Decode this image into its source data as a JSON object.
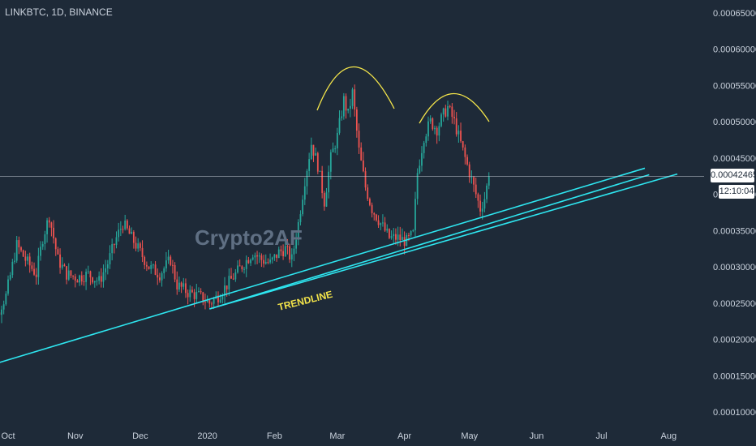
{
  "header": {
    "symbol": "LINKBTC, 1D, BINANCE"
  },
  "watermark": "Crypto2AF",
  "price_badge": "0.00042465",
  "countdown_badge": "12:10:04",
  "colors": {
    "background": "#1e2a38",
    "up": "#26a69a",
    "down": "#ef5350",
    "trendline": "#2ee6f0",
    "arc": "#f5e64a",
    "text": "#c9d1dc"
  },
  "chart_data": {
    "type": "candlestick",
    "title": "",
    "xlabel": "",
    "ylabel": "",
    "ylim": [
      0.0001,
      0.00065
    ],
    "y_ticks": [
      "0.00065000",
      "0.00060000",
      "0.00055000",
      "0.00050000",
      "0.00045000",
      "0.00040000",
      "0.00035000",
      "0.00030000",
      "0.00025000",
      "0.00020000",
      "0.00015000",
      "0.00010000"
    ],
    "y_tick_values": [
      0.00065,
      0.0006,
      0.00055,
      0.0005,
      0.00045,
      0.0004,
      0.00035,
      0.0003,
      0.00025,
      0.0002,
      0.00015,
      0.0001
    ],
    "x_ticks": [
      "Oct",
      "Nov",
      "Dec",
      "2020",
      "Feb",
      "Mar",
      "Apr",
      "May",
      "Jun",
      "Jul",
      "Aug"
    ],
    "x_tick_dates": [
      "2019-10-01",
      "2019-11-01",
      "2019-12-01",
      "2020-01-01",
      "2020-02-01",
      "2020-03-01",
      "2020-04-01",
      "2020-05-01",
      "2020-06-01",
      "2020-07-01",
      "2020-08-01"
    ],
    "current_price": 0.00042465,
    "close_series": [
      [
        "2019-09-20",
        0.000205
      ],
      [
        "2019-09-25",
        0.00023
      ],
      [
        "2019-09-30",
        0.00026
      ],
      [
        "2019-10-05",
        0.00033
      ],
      [
        "2019-10-09",
        0.00031
      ],
      [
        "2019-10-14",
        0.00029
      ],
      [
        "2019-10-17",
        0.00034
      ],
      [
        "2019-10-20",
        0.00037
      ],
      [
        "2019-10-24",
        0.00031
      ],
      [
        "2019-10-28",
        0.00029
      ],
      [
        "2019-11-02",
        0.000285
      ],
      [
        "2019-11-07",
        0.00029
      ],
      [
        "2019-11-12",
        0.00028
      ],
      [
        "2019-11-16",
        0.000305
      ],
      [
        "2019-11-20",
        0.00034
      ],
      [
        "2019-11-23",
        0.00036
      ],
      [
        "2019-11-27",
        0.00034
      ],
      [
        "2019-12-01",
        0.00032
      ],
      [
        "2019-12-05",
        0.0003
      ],
      [
        "2019-12-10",
        0.00029
      ],
      [
        "2019-12-15",
        0.00031
      ],
      [
        "2019-12-18",
        0.000275
      ],
      [
        "2019-12-23",
        0.000265
      ],
      [
        "2019-12-28",
        0.00026
      ],
      [
        "2020-01-02",
        0.00025
      ],
      [
        "2020-01-06",
        0.00026
      ],
      [
        "2020-01-10",
        0.000275
      ],
      [
        "2020-01-14",
        0.00029
      ],
      [
        "2020-01-18",
        0.000305
      ],
      [
        "2020-01-22",
        0.00032
      ],
      [
        "2020-01-26",
        0.00031
      ],
      [
        "2020-01-30",
        0.000305
      ],
      [
        "2020-02-03",
        0.00032
      ],
      [
        "2020-02-06",
        0.000325
      ],
      [
        "2020-02-09",
        0.00031
      ],
      [
        "2020-02-12",
        0.00036
      ],
      [
        "2020-02-15",
        0.00042
      ],
      [
        "2020-02-18",
        0.00047
      ],
      [
        "2020-02-21",
        0.00044
      ],
      [
        "2020-02-24",
        0.00039
      ],
      [
        "2020-02-27",
        0.00045
      ],
      [
        "2020-03-01",
        0.00048
      ],
      [
        "2020-03-04",
        0.00053
      ],
      [
        "2020-03-06",
        0.00051
      ],
      [
        "2020-03-08",
        0.00054
      ],
      [
        "2020-03-11",
        0.00046
      ],
      [
        "2020-03-14",
        0.00041
      ],
      [
        "2020-03-17",
        0.00038
      ],
      [
        "2020-03-21",
        0.00036
      ],
      [
        "2020-03-25",
        0.00034
      ],
      [
        "2020-03-29",
        0.00034
      ],
      [
        "2020-04-02",
        0.000335
      ],
      [
        "2020-04-05",
        0.000345
      ],
      [
        "2020-04-07",
        0.00043
      ],
      [
        "2020-04-10",
        0.00048
      ],
      [
        "2020-04-13",
        0.0005
      ],
      [
        "2020-04-16",
        0.00049
      ],
      [
        "2020-04-19",
        0.00051
      ],
      [
        "2020-04-21",
        0.00052
      ],
      [
        "2020-04-24",
        0.0005
      ],
      [
        "2020-04-27",
        0.00047
      ],
      [
        "2020-04-30",
        0.00044
      ],
      [
        "2020-05-03",
        0.00041
      ],
      [
        "2020-05-06",
        0.00038
      ],
      [
        "2020-05-08",
        0.000395
      ],
      [
        "2020-05-10",
        0.00042465
      ]
    ],
    "trendlines": [
      {
        "from": [
          "2019-09-19",
          0.000161
        ],
        "to": [
          "2020-07-21",
          0.000436
        ]
      },
      {
        "from": [
          "2020-01-02",
          0.000242
        ],
        "to": [
          "2020-07-23",
          0.000427
        ]
      },
      {
        "from": [
          "2020-01-02",
          0.000242
        ],
        "to": [
          "2020-08-05",
          0.000428
        ]
      }
    ],
    "annotations": [
      {
        "text": "TRENDLINE",
        "date": "2020-01-28",
        "price": 0.000258
      }
    ]
  }
}
